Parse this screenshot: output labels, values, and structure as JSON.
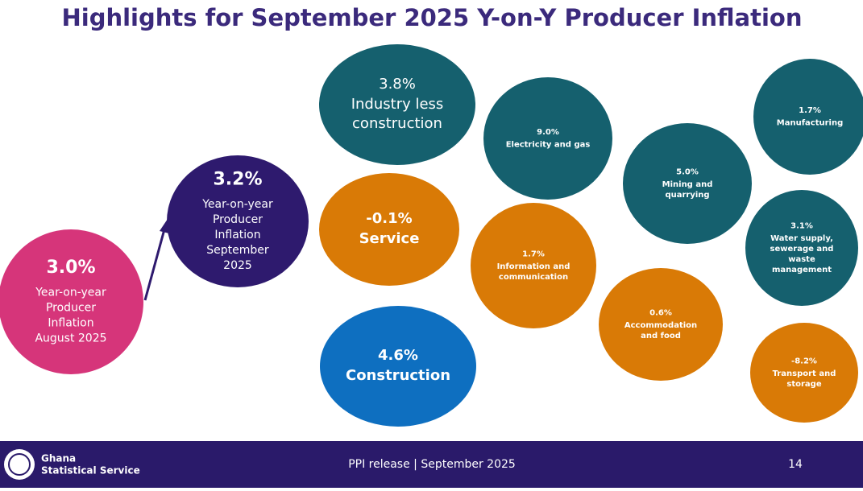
{
  "header": {
    "title": "Highlights for September 2025 Y-on-Y Producer Inflation"
  },
  "bubbles": [
    {
      "value": "3.0%",
      "label": [
        "Year-on-year",
        "Producer",
        "Inflation",
        "August 2025"
      ]
    },
    {
      "value": "3.2%",
      "label": [
        "Year-on-year",
        "Producer",
        "Inflation",
        "September",
        "2025"
      ]
    },
    {
      "value": "3.8%",
      "label": [
        "Industry less",
        "construction"
      ]
    },
    {
      "value": "-0.1%",
      "label": [
        "Service"
      ]
    },
    {
      "value": "4.6%",
      "label": [
        "Construction"
      ]
    },
    {
      "value": "9.0%",
      "label": [
        "Electricity and gas"
      ]
    },
    {
      "value": "1.7%",
      "label": [
        "Information and",
        "communication"
      ]
    },
    {
      "value": "5.0%",
      "label": [
        "Mining and",
        "quarrying"
      ]
    },
    {
      "value": "0.6%",
      "label": [
        "Accommodation",
        "and food"
      ]
    },
    {
      "value": "1.7%",
      "label": [
        "Manufacturing"
      ]
    },
    {
      "value": "3.1%",
      "label": [
        "Water supply,",
        "sewerage and",
        "waste",
        "management"
      ]
    },
    {
      "value": "-8.2%",
      "label": [
        "Transport and",
        "storage"
      ]
    }
  ],
  "footer": {
    "org": [
      "Ghana",
      "Statistical Service"
    ],
    "center": "PPI release | September 2025",
    "page": "14"
  }
}
